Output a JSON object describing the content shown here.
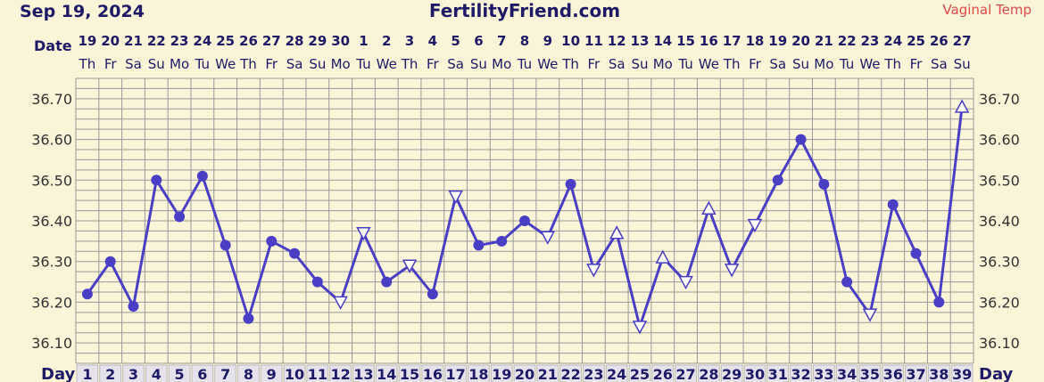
{
  "header": {
    "date": "Sep 19, 2024",
    "site": "FertilityFriend.com",
    "temp_type": "Vaginal Temp"
  },
  "labels": {
    "date": "Date",
    "day": "Day"
  },
  "colors": {
    "line": "#4a3fc4",
    "grid": "#999999",
    "background": "#faf5d8",
    "title": "#1e1a66",
    "temp_type": "#e04a4a"
  },
  "chart_data": {
    "type": "line",
    "title": "FertilityFriend.com",
    "xlabel": "Day",
    "ylabel": "",
    "ylim": [
      36.05,
      36.75
    ],
    "yticks": [
      "36.10",
      "36.20",
      "36.30",
      "36.40",
      "36.50",
      "36.60",
      "36.70"
    ],
    "days": [
      1,
      2,
      3,
      4,
      5,
      6,
      7,
      8,
      9,
      10,
      11,
      12,
      13,
      14,
      15,
      16,
      17,
      18,
      19,
      20,
      21,
      22,
      23,
      24,
      25,
      26,
      27,
      28,
      29,
      30,
      31,
      32,
      33,
      34,
      35,
      36,
      37,
      38,
      39
    ],
    "dates": [
      "19",
      "20",
      "21",
      "22",
      "23",
      "24",
      "25",
      "26",
      "27",
      "28",
      "29",
      "30",
      "1",
      "2",
      "3",
      "4",
      "5",
      "6",
      "7",
      "8",
      "9",
      "10",
      "11",
      "12",
      "13",
      "14",
      "15",
      "16",
      "17",
      "18",
      "19",
      "20",
      "21",
      "22",
      "23",
      "24",
      "25",
      "26",
      "27"
    ],
    "weekdays": [
      "Th",
      "Fr",
      "Sa",
      "Su",
      "Mo",
      "Tu",
      "We",
      "Th",
      "Fr",
      "Sa",
      "Su",
      "Mo",
      "Tu",
      "We",
      "Th",
      "Fr",
      "Sa",
      "Su",
      "Mo",
      "Tu",
      "We",
      "Th",
      "Fr",
      "Sa",
      "Su",
      "Mo",
      "Tu",
      "We",
      "Th",
      "Fr",
      "Sa",
      "Su",
      "Mo",
      "Tu",
      "We",
      "Th",
      "Fr",
      "Sa",
      "Su"
    ],
    "series": [
      {
        "temps": [
          36.22,
          36.3,
          36.19,
          36.5,
          36.41,
          36.51,
          36.34,
          36.16,
          36.35,
          36.32,
          36.25,
          36.2,
          36.37,
          36.25,
          36.29,
          36.22,
          36.46,
          36.34,
          36.35,
          36.4,
          36.36,
          36.49,
          36.28,
          36.37,
          36.14,
          36.31,
          36.25,
          36.43,
          36.28,
          36.39,
          36.5,
          36.6,
          36.49,
          36.25,
          36.17,
          36.44,
          36.32,
          36.2,
          36.68
        ],
        "markers": [
          "dot",
          "dot",
          "dot",
          "dot",
          "dot",
          "dot",
          "dot",
          "dot",
          "dot",
          "dot",
          "dot",
          "tri-down",
          "tri-down",
          "dot",
          "tri-down",
          "dot",
          "tri-down",
          "dot",
          "dot",
          "dot",
          "tri-down",
          "dot",
          "tri-down",
          "tri-up",
          "tri-down",
          "tri-up",
          "tri-down",
          "tri-up",
          "tri-down",
          "tri-down",
          "dot",
          "dot",
          "dot",
          "dot",
          "tri-down",
          "dot",
          "dot",
          "dot",
          "tri-up"
        ]
      }
    ],
    "grid": true
  }
}
